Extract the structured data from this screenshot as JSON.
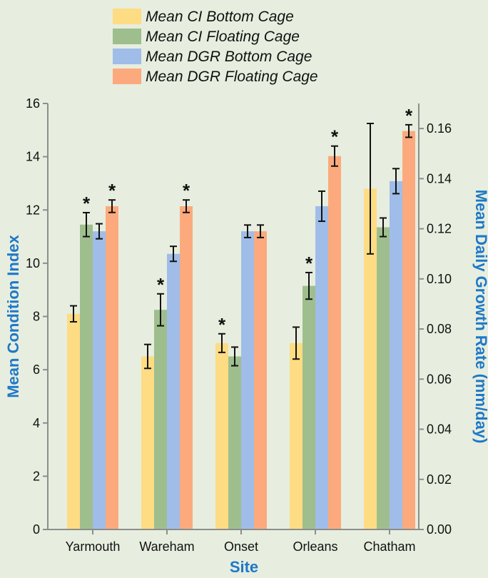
{
  "chart_data": {
    "type": "bar",
    "categories": [
      "Yarmouth",
      "Wareham",
      "Onset",
      "Orleans",
      "Chatham"
    ],
    "series": [
      {
        "name": "Mean CI Bottom Cage",
        "axis": "left",
        "color": "#fddc83",
        "values": [
          8.1,
          6.5,
          7.0,
          7.0,
          12.8
        ],
        "errors": [
          0.3,
          0.45,
          0.35,
          0.6,
          2.45
        ]
      },
      {
        "name": "Mean CI Floating Cage",
        "axis": "left",
        "color": "#9fbe8e",
        "values": [
          11.45,
          8.25,
          6.5,
          9.15,
          11.35
        ],
        "errors": [
          0.45,
          0.6,
          0.35,
          0.5,
          0.35
        ]
      },
      {
        "name": "Mean DGR Bottom Cage",
        "axis": "right",
        "color": "#9fbde8",
        "values": [
          0.119,
          0.11,
          0.119,
          0.129,
          0.139
        ],
        "errors": [
          0.003,
          0.003,
          0.0025,
          0.006,
          0.005
        ]
      },
      {
        "name": "Mean DGR Floating Cage",
        "axis": "right",
        "color": "#fcaa7d",
        "values": [
          0.129,
          0.129,
          0.119,
          0.149,
          0.159
        ],
        "errors": [
          0.0025,
          0.0025,
          0.0025,
          0.004,
          0.0025
        ]
      }
    ],
    "significance_markers": [
      {
        "category": "Yarmouth",
        "series": "Mean CI Floating Cage",
        "label": "*"
      },
      {
        "category": "Yarmouth",
        "series": "Mean DGR Floating Cage",
        "label": "*"
      },
      {
        "category": "Wareham",
        "series": "Mean CI Floating Cage",
        "label": "*"
      },
      {
        "category": "Wareham",
        "series": "Mean DGR Floating Cage",
        "label": "*"
      },
      {
        "category": "Onset",
        "series": "Mean CI Bottom Cage",
        "label": "*"
      },
      {
        "category": "Orleans",
        "series": "Mean CI Floating Cage",
        "label": "*"
      },
      {
        "category": "Orleans",
        "series": "Mean DGR Floating Cage",
        "label": "*"
      },
      {
        "category": "Chatham",
        "series": "Mean DGR Floating Cage",
        "label": "*"
      }
    ],
    "xlabel": "Site",
    "ylabel": "Mean Condition Index",
    "y2label": "Mean Daily Growth Rate (mm/day)",
    "ylim": [
      0,
      16
    ],
    "y2lim": [
      0,
      0.17
    ],
    "yticks": [
      "0",
      "2",
      "4",
      "6",
      "8",
      "10",
      "12",
      "14",
      "16"
    ],
    "y2ticks": [
      "0.00",
      "0.02",
      "0.04",
      "0.06",
      "0.08",
      "0.10",
      "0.12",
      "0.14",
      "0.16"
    ],
    "grid": false,
    "legend_position": "top",
    "axis_title_color": "#1e78c8"
  }
}
